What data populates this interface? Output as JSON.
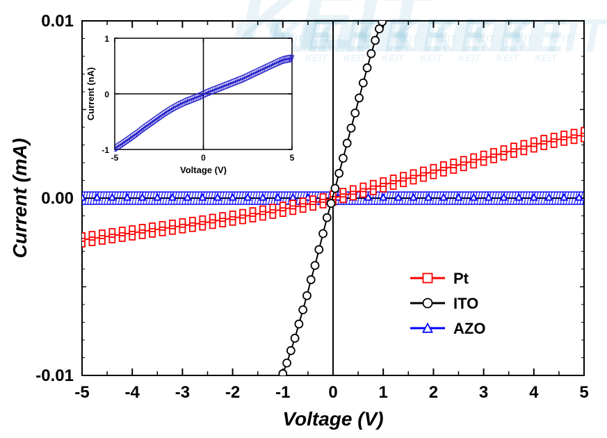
{
  "main_chart": {
    "type": "scatter-line",
    "xlabel": "Voltage (V)",
    "ylabel": "Current (mA)",
    "xlim": [
      -5,
      5
    ],
    "ylim": [
      -0.01,
      0.01
    ],
    "xtick_step": 1,
    "ytick_step": 0.01,
    "ytick_minor_lines": [
      -0.005,
      0.005
    ],
    "tick_fontsize": 24,
    "label_fontsize": 28,
    "label_fontstyle": "italic",
    "label_fontweight": "bold",
    "background_color": "#ffffff",
    "frame_color": "#000000",
    "frame_width": 2,
    "zero_axis_color": "#000000",
    "zero_axis_width": 2,
    "tick_length_major": 10,
    "tick_length_minor": 6,
    "series": {
      "Pt": {
        "color": "#ff0000",
        "marker": "open-square",
        "marker_size": 8,
        "line_width": 2,
        "data": [
          [
            -5.0,
            -0.00235
          ],
          [
            -4.8,
            -0.00228
          ],
          [
            -4.6,
            -0.0022
          ],
          [
            -4.4,
            -0.00212
          ],
          [
            -4.2,
            -0.00204
          ],
          [
            -4.0,
            -0.00196
          ],
          [
            -3.8,
            -0.00188
          ],
          [
            -3.6,
            -0.0018
          ],
          [
            -3.4,
            -0.00172
          ],
          [
            -3.2,
            -0.00164
          ],
          [
            -3.0,
            -0.00156
          ],
          [
            -2.8,
            -0.00148
          ],
          [
            -2.6,
            -0.0014
          ],
          [
            -2.4,
            -0.00131
          ],
          [
            -2.2,
            -0.00122
          ],
          [
            -2.0,
            -0.00113
          ],
          [
            -1.8,
            -0.00104
          ],
          [
            -1.6,
            -0.00094
          ],
          [
            -1.4,
            -0.00084
          ],
          [
            -1.2,
            -0.00074
          ],
          [
            -1.0,
            -0.00063
          ],
          [
            -0.8,
            -0.00052
          ],
          [
            -0.6,
            -0.0004
          ],
          [
            -0.4,
            -0.00028
          ],
          [
            -0.2,
            -0.00015
          ],
          [
            0.0,
            0.0
          ],
          [
            0.2,
            0.00015
          ],
          [
            0.4,
            0.0003
          ],
          [
            0.6,
            0.00045
          ],
          [
            0.8,
            0.0006
          ],
          [
            1.0,
            0.00075
          ],
          [
            1.2,
            0.0009
          ],
          [
            1.4,
            0.00105
          ],
          [
            1.6,
            0.0012
          ],
          [
            1.8,
            0.00135
          ],
          [
            2.0,
            0.0015
          ],
          [
            2.2,
            0.00165
          ],
          [
            2.4,
            0.0018
          ],
          [
            2.6,
            0.00195
          ],
          [
            2.8,
            0.0021
          ],
          [
            3.0,
            0.00225
          ],
          [
            3.2,
            0.0024
          ],
          [
            3.4,
            0.00255
          ],
          [
            3.6,
            0.0027
          ],
          [
            3.8,
            0.00285
          ],
          [
            4.0,
            0.003
          ],
          [
            4.2,
            0.00314
          ],
          [
            4.4,
            0.00326
          ],
          [
            4.6,
            0.00338
          ],
          [
            4.8,
            0.00348
          ],
          [
            5.0,
            0.00358
          ]
        ]
      },
      "ITO": {
        "color": "#000000",
        "marker": "open-circle",
        "marker_size": 11,
        "line_width": 2,
        "data": [
          [
            -1.0,
            -0.0099
          ],
          [
            -0.92,
            -0.0093
          ],
          [
            -0.84,
            -0.0086
          ],
          [
            -0.76,
            -0.0079
          ],
          [
            -0.68,
            -0.0071
          ],
          [
            -0.6,
            -0.0063
          ],
          [
            -0.52,
            -0.0055
          ],
          [
            -0.44,
            -0.0046
          ],
          [
            -0.36,
            -0.0038
          ],
          [
            -0.28,
            -0.0029
          ],
          [
            -0.2,
            -0.002
          ],
          [
            -0.12,
            -0.0011
          ],
          [
            -0.04,
            -0.0003
          ],
          [
            0.04,
            0.00055
          ],
          [
            0.12,
            0.0014
          ],
          [
            0.2,
            0.00225
          ],
          [
            0.28,
            0.0031
          ],
          [
            0.36,
            0.00395
          ],
          [
            0.44,
            0.0048
          ],
          [
            0.52,
            0.00565
          ],
          [
            0.6,
            0.0065
          ],
          [
            0.68,
            0.00735
          ],
          [
            0.76,
            0.00815
          ],
          [
            0.84,
            0.0089
          ],
          [
            0.92,
            0.00955
          ],
          [
            0.98,
            0.00995
          ]
        ]
      },
      "AZO": {
        "color": "#0000ff",
        "marker": "open-triangle",
        "marker_size": 9,
        "line_width": 2,
        "band_half_height": 0.00035,
        "data": [
          [
            -5.0,
            5e-05
          ],
          [
            -4.7,
            5e-05
          ],
          [
            -4.4,
            5e-05
          ],
          [
            -4.1,
            5e-05
          ],
          [
            -3.8,
            5e-05
          ],
          [
            -3.5,
            5e-05
          ],
          [
            -3.2,
            5e-05
          ],
          [
            -2.9,
            5e-05
          ],
          [
            -2.6,
            5e-05
          ],
          [
            -2.3,
            5e-05
          ],
          [
            -2.0,
            5e-05
          ],
          [
            -1.7,
            5e-05
          ],
          [
            -1.4,
            5e-05
          ],
          [
            -1.1,
            5e-05
          ],
          [
            -0.8,
            5e-05
          ],
          [
            -0.5,
            5e-05
          ],
          [
            -0.2,
            5e-05
          ],
          [
            0.1,
            5e-05
          ],
          [
            0.4,
            5e-05
          ],
          [
            0.7,
            5e-05
          ],
          [
            1.0,
            5e-05
          ],
          [
            1.3,
            5e-05
          ],
          [
            1.6,
            5e-05
          ],
          [
            1.9,
            5e-05
          ],
          [
            2.2,
            5e-05
          ],
          [
            2.5,
            5e-05
          ],
          [
            2.8,
            5e-05
          ],
          [
            3.1,
            5e-05
          ],
          [
            3.4,
            5e-05
          ],
          [
            3.7,
            5e-05
          ],
          [
            4.0,
            5e-05
          ],
          [
            4.3,
            5e-05
          ],
          [
            4.6,
            5e-05
          ],
          [
            4.9,
            5e-05
          ]
        ]
      }
    }
  },
  "legend": {
    "items": [
      {
        "label": "Pt",
        "color": "#ff0000",
        "marker": "open-square"
      },
      {
        "label": "ITO",
        "color": "#000000",
        "marker": "open-circle"
      },
      {
        "label": "AZO",
        "color": "#0000ff",
        "marker": "open-triangle"
      }
    ],
    "fontsize": 22,
    "fontweight": "bold",
    "position": "lower-right",
    "line_width": 3
  },
  "inset_chart": {
    "type": "line",
    "xlabel": "Voltage (V)",
    "ylabel": "Current (nA)",
    "xlim": [
      -5,
      5
    ],
    "ylim": [
      -1,
      1
    ],
    "xtick_vals": [
      -5,
      0,
      5
    ],
    "ytick_vals": [
      -1,
      0,
      1
    ],
    "tick_fontsize": 12,
    "label_fontsize": 13,
    "series_color": "#2621c9",
    "line_width": 2.5,
    "band_half_height": 0.06,
    "data": [
      [
        -5.0,
        -0.98
      ],
      [
        -4.6,
        -0.9
      ],
      [
        -4.2,
        -0.81
      ],
      [
        -3.8,
        -0.72
      ],
      [
        -3.4,
        -0.62
      ],
      [
        -3.0,
        -0.53
      ],
      [
        -2.6,
        -0.44
      ],
      [
        -2.2,
        -0.35
      ],
      [
        -1.8,
        -0.27
      ],
      [
        -1.4,
        -0.2
      ],
      [
        -1.0,
        -0.14
      ],
      [
        -0.6,
        -0.09
      ],
      [
        -0.2,
        -0.04
      ],
      [
        0.2,
        0.02
      ],
      [
        0.6,
        0.07
      ],
      [
        1.0,
        0.12
      ],
      [
        1.4,
        0.17
      ],
      [
        1.8,
        0.22
      ],
      [
        2.2,
        0.27
      ],
      [
        2.6,
        0.33
      ],
      [
        3.0,
        0.39
      ],
      [
        3.4,
        0.45
      ],
      [
        3.8,
        0.51
      ],
      [
        4.2,
        0.57
      ],
      [
        4.5,
        0.61
      ],
      [
        4.8,
        0.63
      ],
      [
        5.0,
        0.64
      ]
    ]
  },
  "watermark": {
    "text": "KEIT",
    "color": "#59a9cc",
    "opacity": 0.12
  }
}
